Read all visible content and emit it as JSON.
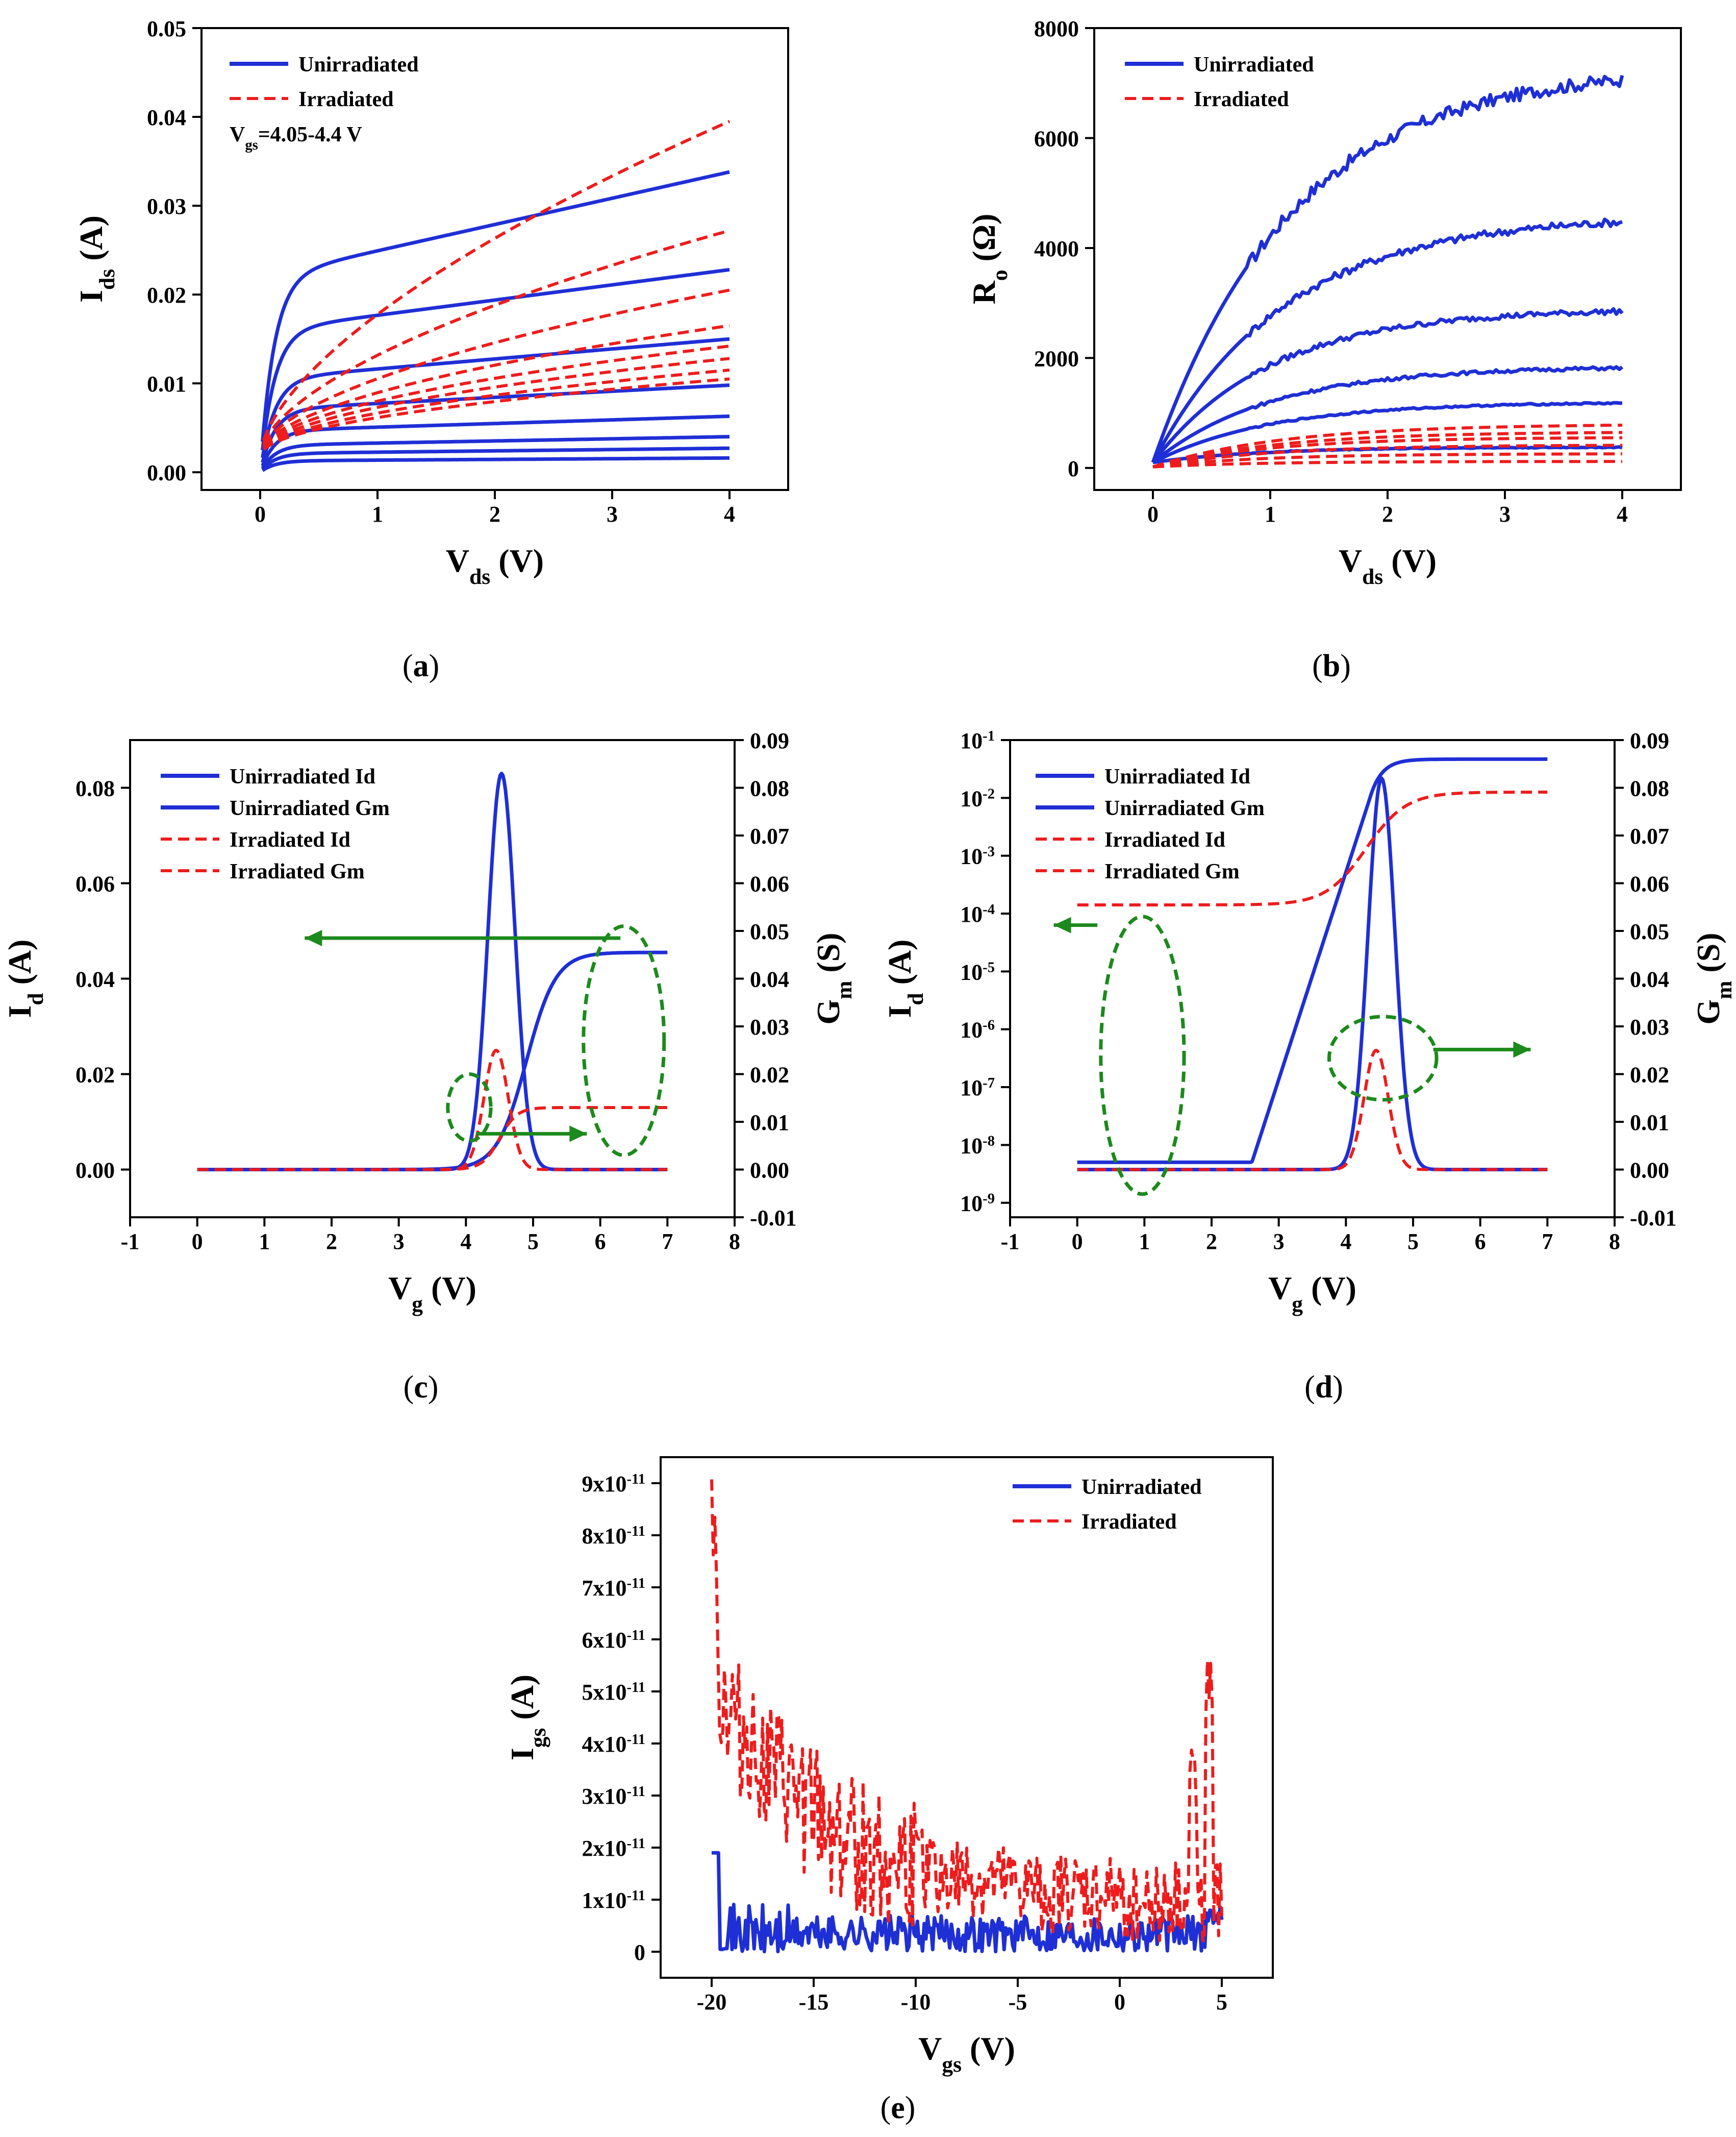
{
  "colors": {
    "unirradiated": "#1f2fd6",
    "irradiated": "#ee1c1c",
    "annotation": "#1c8a1c",
    "axis": "#000000"
  },
  "chart_data": [
    {
      "id": "a",
      "type": "line",
      "caption_open": "(",
      "caption_letter": "a",
      "caption_close": ")",
      "xlabel_main": "V",
      "xlabel_sub": "ds",
      "xlabel_tail": " (V)",
      "ylabel_main": "I",
      "ylabel_sub": "ds",
      "ylabel_tail": " (A)",
      "xlim": [
        -0.5,
        4.5
      ],
      "ylim": [
        -0.002,
        0.05
      ],
      "xticks": [
        0,
        1,
        2,
        3,
        4
      ],
      "xtick_labels": [
        "0",
        "1",
        "2",
        "3",
        "4"
      ],
      "yticks": [
        0,
        0.01,
        0.02,
        0.03,
        0.04,
        0.05
      ],
      "ytick_labels": [
        "0.00",
        "0.01",
        "0.02",
        "0.03",
        "0.04",
        "0.05"
      ],
      "legend": [
        {
          "label": "Unirradiated",
          "style": "solid",
          "color": "#1f2fd6"
        },
        {
          "label": "Irradiated",
          "style": "dashed",
          "color": "#ee1c1c"
        }
      ],
      "annotation_main": "V",
      "annotation_sub": "gs",
      "annotation_tail": "=4.05-4.4 V",
      "series": [
        {
          "name": "Unirradiated",
          "style": "solid",
          "color": "#1f2fd6",
          "curve_family": "saturating",
          "x_range": [
            0.02,
            4
          ],
          "values_at_4V": [
            0.0338,
            0.0228,
            0.015,
            0.0098,
            0.0063,
            0.004,
            0.0027,
            0.0016
          ],
          "knee_fraction": [
            0.65,
            0.7,
            0.7,
            0.72,
            0.74,
            0.76,
            0.78,
            0.8
          ],
          "knee_width": 0.12
        },
        {
          "name": "Irradiated",
          "style": "dashed",
          "color": "#ee1c1c",
          "curve_family": "sublinear",
          "x_range": [
            0.03,
            4
          ],
          "values_at_4V": [
            0.0395,
            0.0272,
            0.0205,
            0.0165,
            0.0142,
            0.0128,
            0.0115,
            0.0105
          ],
          "start_value": 0.0018,
          "exponent": [
            0.62,
            0.58,
            0.55,
            0.52,
            0.5,
            0.5,
            0.5,
            0.5
          ]
        }
      ]
    },
    {
      "id": "b",
      "type": "line",
      "caption_open": "(",
      "caption_letter": "b",
      "caption_close": ")",
      "xlabel_main": "V",
      "xlabel_sub": "ds",
      "xlabel_tail": " (V)",
      "ylabel_main": "R",
      "ylabel_sub": "o",
      "ylabel_tail": " (Ω)",
      "xlim": [
        -0.5,
        4.5
      ],
      "ylim": [
        -400,
        8000
      ],
      "xticks": [
        0,
        1,
        2,
        3,
        4
      ],
      "xtick_labels": [
        "0",
        "1",
        "2",
        "3",
        "4"
      ],
      "yticks": [
        0,
        2000,
        4000,
        6000,
        8000
      ],
      "ytick_labels": [
        "0",
        "2000",
        "4000",
        "6000",
        "8000"
      ],
      "legend": [
        {
          "label": "Unirradiated",
          "style": "solid",
          "color": "#1f2fd6"
        },
        {
          "label": "Irradiated",
          "style": "dashed",
          "color": "#ee1c1c"
        }
      ],
      "series": [
        {
          "name": "Unirradiated",
          "style": "solid",
          "color": "#1f2fd6",
          "curve_family": "exponential_saturation",
          "x_range": [
            0,
            4
          ],
          "start_value": 100,
          "plateau_values": [
            7300,
            4600,
            2900,
            1850,
            1200,
            380
          ],
          "rate": [
            0.85,
            0.9,
            1.0,
            1.0,
            1.0,
            1.1
          ],
          "noise_amplitude": [
            120,
            70,
            50,
            30,
            15,
            8
          ]
        },
        {
          "name": "Irradiated",
          "style": "dashed",
          "color": "#ee1c1c",
          "curve_family": "exponential_saturation",
          "x_range": [
            0,
            4
          ],
          "start_value": 20,
          "plateau_values": [
            800,
            660,
            560,
            420,
            260,
            120
          ],
          "rate": [
            0.9,
            0.95,
            1.0,
            1.0,
            1.05,
            1.1
          ],
          "noise_amplitude": [
            0,
            0,
            0,
            0,
            0,
            0
          ]
        }
      ]
    },
    {
      "id": "c",
      "type": "line",
      "yscale": "linear",
      "caption_open": "(",
      "caption_letter": "c",
      "caption_close": ")",
      "xlabel_main": "V",
      "xlabel_sub": "g",
      "xlabel_tail": " (V)",
      "ylabel_main": "I",
      "ylabel_sub": "d",
      "ylabel_tail": " (A)",
      "y2label_main": "G",
      "y2label_sub": "m",
      "y2label_tail": " (S)",
      "xlim": [
        -1,
        8
      ],
      "ylim": [
        -0.01,
        0.09
      ],
      "y2lim": [
        -0.01,
        0.09
      ],
      "xticks": [
        -1,
        0,
        1,
        2,
        3,
        4,
        5,
        6,
        7,
        8
      ],
      "xtick_labels": [
        "-1",
        "0",
        "1",
        "2",
        "3",
        "4",
        "5",
        "6",
        "7",
        "8"
      ],
      "yticks": [
        0,
        0.02,
        0.04,
        0.06,
        0.08
      ],
      "ytick_labels": [
        "0.00",
        "0.02",
        "0.04",
        "0.06",
        "0.08"
      ],
      "y2ticks": [
        -0.01,
        0,
        0.01,
        0.02,
        0.03,
        0.04,
        0.05,
        0.06,
        0.07,
        0.08,
        0.09
      ],
      "y2tick_labels": [
        "-0.01",
        "0.00",
        "0.01",
        "0.02",
        "0.03",
        "0.04",
        "0.05",
        "0.06",
        "0.07",
        "0.08",
        "0.09"
      ],
      "legend": [
        {
          "label": "Unirradiated Id",
          "style": "solid",
          "color": "#1f2fd6"
        },
        {
          "label": "Unirradiated Gm",
          "style": "solid",
          "color": "#1f2fd6"
        },
        {
          "label": "Irradiated Id",
          "style": "dashed",
          "color": "#ee1c1c"
        },
        {
          "label": "Irradiated Gm",
          "style": "dashed",
          "color": "#ee1c1c"
        }
      ],
      "series": [
        {
          "name": "Unirradiated Id",
          "color": "#1f2fd6",
          "style": "solid",
          "curve_family": "sigmoid",
          "x_range": [
            0,
            7
          ],
          "low": 0,
          "high": 0.0455,
          "center": 4.9,
          "width": 0.22
        },
        {
          "name": "Unirradiated Gm",
          "color": "#1f2fd6",
          "style": "solid",
          "curve_family": "gaussian_peak",
          "x_range": [
            0,
            7
          ],
          "low": 0,
          "peak": 0.083,
          "center": 4.53,
          "width": 0.2
        },
        {
          "name": "Irradiated Id",
          "color": "#ee1c1c",
          "style": "dashed",
          "curve_family": "sigmoid",
          "x_range": [
            0,
            7
          ],
          "low": 0,
          "high": 0.013,
          "center": 4.5,
          "width": 0.13
        },
        {
          "name": "Irradiated Gm",
          "color": "#ee1c1c",
          "style": "dashed",
          "curve_family": "gaussian_peak",
          "x_range": [
            0,
            7
          ],
          "low": 0,
          "peak": 0.025,
          "center": 4.45,
          "width": 0.18
        }
      ],
      "annotations": [
        {
          "kind": "ellipse",
          "cx": 6.35,
          "cy": 0.027,
          "rx": 0.6,
          "ry": 0.024
        },
        {
          "kind": "ellipse",
          "cx": 4.05,
          "cy": 0.013,
          "rx": 0.32,
          "ry": 0.007
        },
        {
          "kind": "arrow",
          "from": [
            6.3,
            0.0485
          ],
          "to": [
            1.6,
            0.0485
          ]
        },
        {
          "kind": "arrow",
          "from": [
            4.15,
            0.0075
          ],
          "to": [
            5.8,
            0.0075
          ]
        }
      ]
    },
    {
      "id": "d",
      "type": "line",
      "yscale": "log",
      "caption_open": "(",
      "caption_letter": "d",
      "caption_close": ")",
      "xlabel_main": "V",
      "xlabel_sub": "g",
      "xlabel_tail": " (V)",
      "ylabel_main": "I",
      "ylabel_sub": "d",
      "ylabel_tail": " (A)",
      "y2label_main": "G",
      "y2label_sub": "m",
      "y2label_tail": " (S)",
      "xlim": [
        -1,
        8
      ],
      "ylim_log10": [
        -9.25,
        -1
      ],
      "y2lim": [
        -0.01,
        0.09
      ],
      "xticks": [
        -1,
        0,
        1,
        2,
        3,
        4,
        5,
        6,
        7,
        8
      ],
      "xtick_labels": [
        "-1",
        "0",
        "1",
        "2",
        "3",
        "4",
        "5",
        "6",
        "7",
        "8"
      ],
      "ytick_exponents": [
        -9,
        -8,
        -7,
        -6,
        -5,
        -4,
        -3,
        -2,
        -1
      ],
      "ytick_base": "10",
      "y2ticks": [
        -0.01,
        0,
        0.01,
        0.02,
        0.03,
        0.04,
        0.05,
        0.06,
        0.07,
        0.08,
        0.09
      ],
      "y2tick_labels": [
        "-0.01",
        "0.00",
        "0.01",
        "0.02",
        "0.03",
        "0.04",
        "0.05",
        "0.06",
        "0.07",
        "0.08",
        "0.09"
      ],
      "legend": [
        {
          "label": "Unirradiated Id",
          "style": "solid",
          "color": "#1f2fd6"
        },
        {
          "label": "Unirradiated Gm",
          "style": "solid",
          "color": "#1f2fd6"
        },
        {
          "label": "Irradiated Id",
          "style": "dashed",
          "color": "#ee1c1c"
        },
        {
          "label": "Irradiated Gm",
          "style": "dashed",
          "color": "#ee1c1c"
        }
      ],
      "series": [
        {
          "name": "Unirradiated Id",
          "axis": "left_log",
          "color": "#1f2fd6",
          "style": "solid",
          "curve_family": "log_sigmoid",
          "x_range": [
            0,
            7
          ],
          "log10_low": -8.3,
          "log10_high": -1.33,
          "turn_on": 2.6,
          "center": 4.35,
          "width": 0.35
        },
        {
          "name": "Unirradiated Gm",
          "axis": "right",
          "color": "#1f2fd6",
          "style": "solid",
          "curve_family": "gaussian_peak",
          "x_range": [
            0,
            7
          ],
          "low": 0,
          "peak": 0.082,
          "center": 4.53,
          "width": 0.2
        },
        {
          "name": "Irradiated Id",
          "axis": "left_log",
          "color": "#ee1c1c",
          "style": "dashed",
          "curve_family": "log_sigmoid",
          "x_range": [
            0,
            7
          ],
          "log10_low": -3.85,
          "log10_high": -1.9,
          "center": 4.3,
          "width": 0.3
        },
        {
          "name": "Irradiated Gm",
          "axis": "right",
          "color": "#ee1c1c",
          "style": "dashed",
          "curve_family": "gaussian_peak",
          "x_range": [
            0,
            7
          ],
          "low": 0,
          "peak": 0.025,
          "center": 4.45,
          "width": 0.18
        }
      ],
      "annotations": [
        {
          "kind": "ellipse_log",
          "cx": 0.97,
          "cy": -6.45,
          "rx": 0.62,
          "ry": 2.4
        },
        {
          "kind": "ellipse_log",
          "cx": 4.55,
          "cy": -6.5,
          "rx": 0.8,
          "ry": 0.72
        },
        {
          "kind": "arrow_log",
          "from": [
            0.3,
            -4.2
          ],
          "to": [
            -0.35,
            -4.2
          ]
        },
        {
          "kind": "arrow_log",
          "from": [
            5.3,
            -6.35
          ],
          "to": [
            6.75,
            -6.35
          ]
        }
      ]
    },
    {
      "id": "e",
      "type": "line",
      "caption_open": "(",
      "caption_letter": "e",
      "caption_close": ")",
      "xlabel_main": "V",
      "xlabel_sub": "gs",
      "xlabel_tail": " (V)",
      "ylabel_main": "I",
      "ylabel_sub": "gs",
      "ylabel_tail": " (A)",
      "xlim": [
        -22.5,
        7.5
      ],
      "ylim": [
        -5e-12,
        9.5e-11
      ],
      "xticks": [
        -20,
        -15,
        -10,
        -5,
        0,
        5
      ],
      "xtick_labels": [
        "-20",
        "-15",
        "-10",
        "-5",
        "0",
        "5"
      ],
      "yticks": [
        0,
        1e-11,
        2e-11,
        3e-11,
        4e-11,
        5e-11,
        6e-11,
        7e-11,
        8e-11,
        9e-11
      ],
      "ytick_labels": [
        "0",
        "1x10",
        "2x10",
        "3x10",
        "4x10",
        "5x10",
        "6x10",
        "7x10",
        "8x10",
        "9x10"
      ],
      "ytick_exponent": "-11",
      "legend": [
        {
          "label": "Unirradiated",
          "style": "solid",
          "color": "#1f2fd6"
        },
        {
          "label": "Irradiated",
          "style": "dashed",
          "color": "#ee1c1c"
        }
      ],
      "series": [
        {
          "name": "Unirradiated",
          "style": "solid",
          "color": "#1f2fd6",
          "curve_family": "noisy_baseline",
          "x_range": [
            -20,
            5
          ],
          "start_value": 1.9e-11,
          "baseline": 3.5e-12,
          "noise_amplitude": 3.5e-12,
          "end_spike": 9e-12
        },
        {
          "name": "Irradiated",
          "style": "dashed",
          "color": "#ee1c1c",
          "curve_family": "noisy_decay",
          "x_range": [
            -20,
            5
          ],
          "start_value": 8.5e-11,
          "decay_to": 9e-12,
          "noise_amplitude": 6e-12,
          "end_spike": 5.6e-11
        }
      ]
    }
  ]
}
